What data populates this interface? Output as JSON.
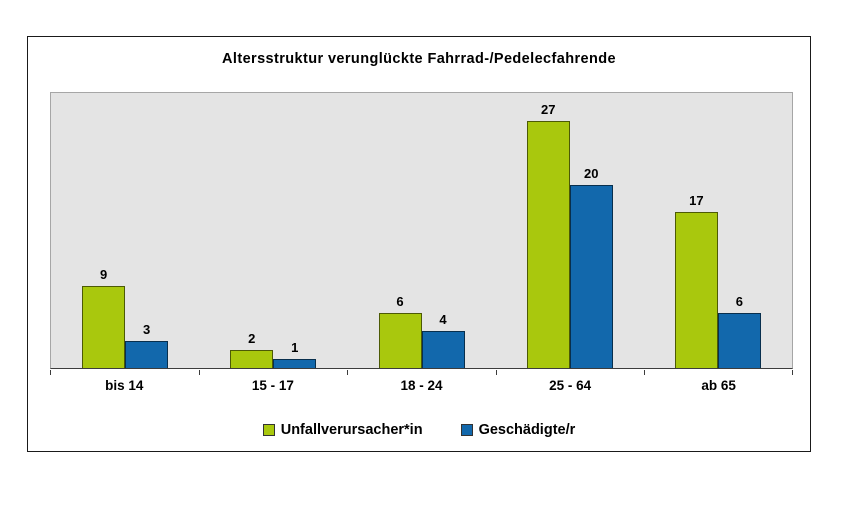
{
  "chart_data": {
    "type": "bar",
    "title": "Altersstruktur verunglückte Fahrrad-/Pedelecfahrende",
    "categories": [
      "bis 14",
      "15 - 17",
      "18 - 24",
      "25 - 64",
      "ab 65"
    ],
    "series": [
      {
        "name": "Unfallverursacher*in",
        "color": "#a9c80d",
        "values": [
          9,
          2,
          6,
          27,
          17
        ]
      },
      {
        "name": "Geschädigte/r",
        "color": "#1268ac",
        "values": [
          3,
          1,
          4,
          20,
          6
        ]
      }
    ],
    "ylim": [
      0,
      30
    ],
    "grid": false,
    "legend_position": "bottom",
    "plot_background": "#e4e4e4",
    "frame_border_color": "#1a1a1a",
    "value_labels_shown": true
  }
}
